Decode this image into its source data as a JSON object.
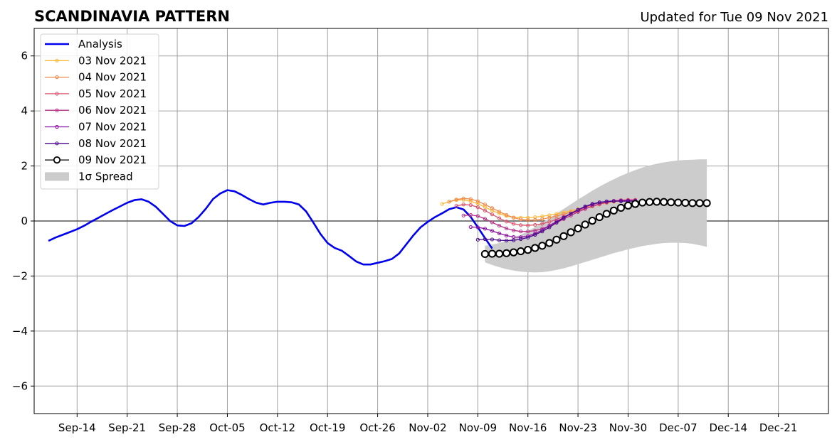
{
  "chart_data": {
    "type": "line",
    "title": "SCANDINAVIA PATTERN",
    "subtitle": "Updated for Tue 09 Nov 2021",
    "xlabel": "",
    "ylabel": "",
    "xlim": [
      "2021-09-08",
      "2021-12-28"
    ],
    "ylim": [
      -7,
      7
    ],
    "x_tick_labels": [
      "Sep-14",
      "Sep-21",
      "Sep-28",
      "Oct-05",
      "Oct-12",
      "Oct-19",
      "Oct-26",
      "Nov-02",
      "Nov-09",
      "Nov-16",
      "Nov-23",
      "Nov-30",
      "Dec-07",
      "Dec-14",
      "Dec-21"
    ],
    "x_tick_dates": [
      "2021-09-14",
      "2021-09-21",
      "2021-09-28",
      "2021-10-05",
      "2021-10-12",
      "2021-10-19",
      "2021-10-26",
      "2021-11-02",
      "2021-11-09",
      "2021-11-16",
      "2021-11-23",
      "2021-11-30",
      "2021-12-07",
      "2021-12-14",
      "2021-12-21"
    ],
    "y_ticks": [
      -6,
      -4,
      -2,
      0,
      2,
      4,
      6
    ],
    "y_tick_labels": [
      "−6",
      "−4",
      "−2",
      "0",
      "2",
      "4",
      "6"
    ],
    "grid": true,
    "legend_position": "top-left",
    "analysis": {
      "name": "Analysis",
      "color": "#0000ee",
      "start": "2021-09-10",
      "values": [
        -0.72,
        -0.6,
        -0.5,
        -0.4,
        -0.3,
        -0.17,
        -0.02,
        0.12,
        0.26,
        0.4,
        0.53,
        0.66,
        0.76,
        0.79,
        0.7,
        0.52,
        0.26,
        0.0,
        -0.16,
        -0.18,
        -0.08,
        0.15,
        0.45,
        0.8,
        1.0,
        1.12,
        1.08,
        0.95,
        0.8,
        0.67,
        0.6,
        0.66,
        0.7,
        0.7,
        0.68,
        0.6,
        0.35,
        -0.05,
        -0.47,
        -0.8,
        -0.98,
        -1.08,
        -1.27,
        -1.47,
        -1.58,
        -1.58,
        -1.52,
        -1.46,
        -1.38,
        -1.18,
        -0.85,
        -0.52,
        -0.23,
        -0.03,
        0.14,
        0.28,
        0.43,
        0.5,
        0.42,
        0.15,
        -0.23,
        -0.62,
        -1.0
      ]
    },
    "forecasts": [
      {
        "name": "03 Nov 2021",
        "color": "#fcb93a",
        "start": "2021-11-04",
        "values": [
          0.62,
          0.7,
          0.76,
          0.77,
          0.72,
          0.63,
          0.5,
          0.38,
          0.27,
          0.18,
          0.13,
          0.12,
          0.12,
          0.14,
          0.17,
          0.21,
          0.26,
          0.31,
          0.37,
          0.43,
          0.49,
          0.55,
          0.61,
          0.66,
          0.7,
          0.73,
          0.74,
          0.74
        ]
      },
      {
        "name": "04 Nov 2021",
        "color": "#f08a4b",
        "start": "2021-11-05",
        "values": [
          0.7,
          0.78,
          0.82,
          0.8,
          0.72,
          0.6,
          0.47,
          0.34,
          0.22,
          0.12,
          0.06,
          0.03,
          0.04,
          0.07,
          0.12,
          0.18,
          0.25,
          0.32,
          0.39,
          0.46,
          0.53,
          0.6,
          0.66,
          0.71,
          0.75,
          0.77,
          0.77
        ]
      },
      {
        "name": "05 Nov 2021",
        "color": "#d9566e",
        "start": "2021-11-06",
        "values": [
          0.55,
          0.6,
          0.58,
          0.5,
          0.38,
          0.24,
          0.1,
          -0.02,
          -0.1,
          -0.15,
          -0.16,
          -0.14,
          -0.1,
          -0.03,
          0.06,
          0.16,
          0.26,
          0.36,
          0.45,
          0.54,
          0.62,
          0.68,
          0.73,
          0.76,
          0.77,
          0.77
        ]
      },
      {
        "name": "06 Nov 2021",
        "color": "#b83289",
        "start": "2021-11-07",
        "values": [
          0.2,
          0.22,
          0.18,
          0.08,
          -0.05,
          -0.17,
          -0.27,
          -0.34,
          -0.38,
          -0.38,
          -0.35,
          -0.28,
          -0.18,
          -0.06,
          0.07,
          0.2,
          0.33,
          0.44,
          0.54,
          0.62,
          0.68,
          0.72,
          0.74,
          0.75,
          0.75
        ]
      },
      {
        "name": "07 Nov 2021",
        "color": "#8c0fa3",
        "start": "2021-11-08",
        "values": [
          -0.22,
          -0.23,
          -0.28,
          -0.36,
          -0.45,
          -0.53,
          -0.58,
          -0.59,
          -0.55,
          -0.46,
          -0.33,
          -0.17,
          -0.02,
          0.13,
          0.27,
          0.4,
          0.51,
          0.6,
          0.67,
          0.71,
          0.73,
          0.74,
          0.74,
          0.74
        ]
      },
      {
        "name": "08 Nov 2021",
        "color": "#4b0a8c",
        "start": "2021-11-09",
        "values": [
          -0.68,
          -0.66,
          -0.67,
          -0.7,
          -0.71,
          -0.7,
          -0.66,
          -0.6,
          -0.5,
          -0.38,
          -0.23,
          -0.06,
          0.11,
          0.27,
          0.41,
          0.53,
          0.62,
          0.68,
          0.71,
          0.72,
          0.72,
          0.72,
          0.72
        ]
      },
      {
        "name": "09 Nov 2021",
        "color": "#000000",
        "marker_face": "#ffffff",
        "start": "2021-11-10",
        "values": [
          -1.2,
          -1.19,
          -1.19,
          -1.17,
          -1.14,
          -1.1,
          -1.05,
          -0.98,
          -0.9,
          -0.8,
          -0.68,
          -0.55,
          -0.41,
          -0.27,
          -0.13,
          0.01,
          0.14,
          0.26,
          0.38,
          0.48,
          0.56,
          0.62,
          0.67,
          0.69,
          0.7,
          0.69,
          0.68,
          0.67,
          0.66,
          0.65,
          0.65,
          0.65
        ]
      }
    ],
    "spread": {
      "name": "1σ Spread",
      "color": "#cccccc",
      "start": "2021-11-10",
      "upper": [
        -0.9,
        -0.86,
        -0.8,
        -0.72,
        -0.62,
        -0.5,
        -0.37,
        -0.22,
        -0.06,
        0.1,
        0.27,
        0.44,
        0.61,
        0.78,
        0.94,
        1.1,
        1.25,
        1.39,
        1.52,
        1.64,
        1.75,
        1.85,
        1.94,
        2.02,
        2.08,
        2.13,
        2.17,
        2.2,
        2.22,
        2.23,
        2.24,
        2.24
      ],
      "lower": [
        -1.5,
        -1.6,
        -1.68,
        -1.75,
        -1.8,
        -1.84,
        -1.86,
        -1.87,
        -1.86,
        -1.83,
        -1.78,
        -1.72,
        -1.65,
        -1.57,
        -1.49,
        -1.41,
        -1.33,
        -1.25,
        -1.17,
        -1.1,
        -1.03,
        -0.97,
        -0.91,
        -0.87,
        -0.83,
        -0.8,
        -0.79,
        -0.79,
        -0.8,
        -0.83,
        -0.88,
        -0.94
      ]
    }
  }
}
